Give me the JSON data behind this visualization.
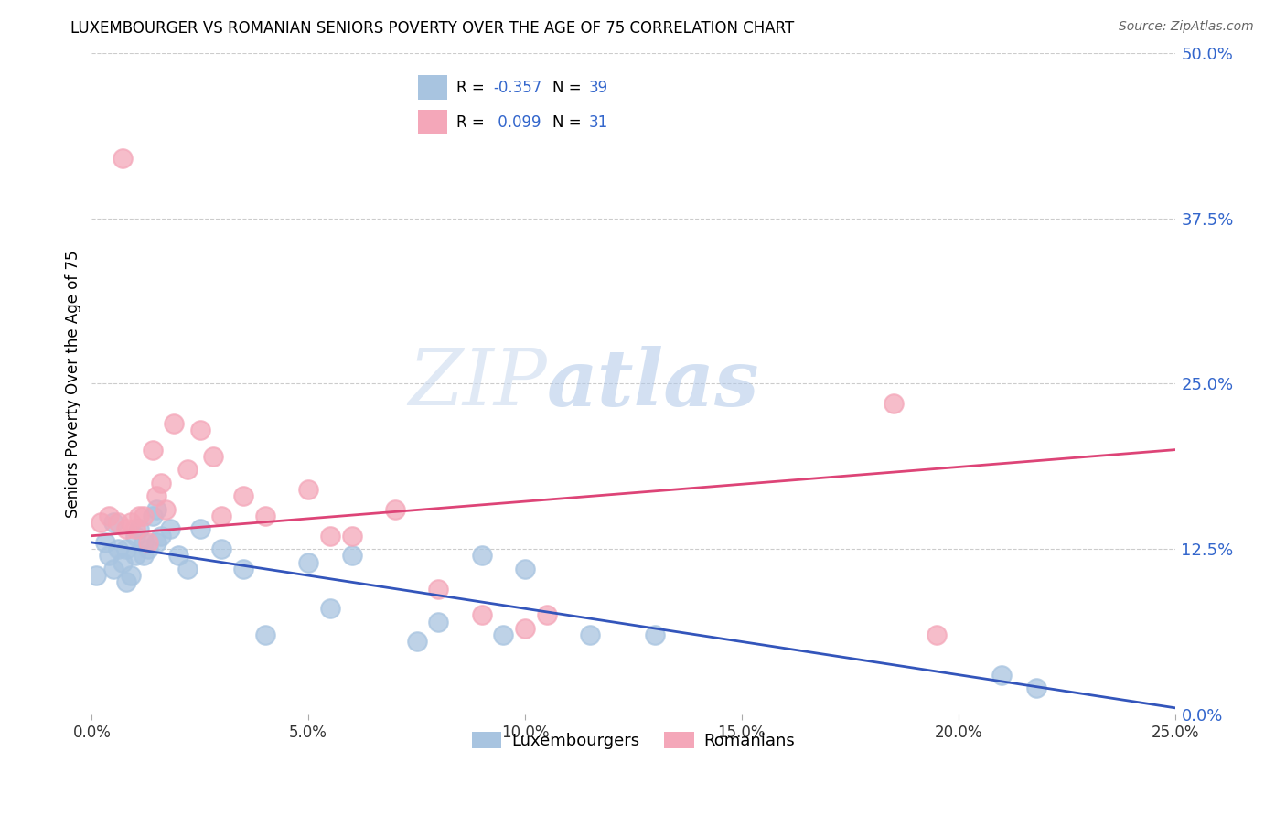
{
  "title": "LUXEMBOURGER VS ROMANIAN SENIORS POVERTY OVER THE AGE OF 75 CORRELATION CHART",
  "source": "Source: ZipAtlas.com",
  "ylabel": "Seniors Poverty Over the Age of 75",
  "xlabel_ticks": [
    "0.0%",
    "5.0%",
    "10.0%",
    "15.0%",
    "20.0%",
    "25.0%"
  ],
  "xlabel_vals": [
    0.0,
    0.05,
    0.1,
    0.15,
    0.2,
    0.25
  ],
  "ylabel_ticks": [
    "0.0%",
    "12.5%",
    "25.0%",
    "37.5%",
    "50.0%"
  ],
  "ylabel_vals": [
    0.0,
    0.125,
    0.25,
    0.375,
    0.5
  ],
  "xlim": [
    0.0,
    0.25
  ],
  "ylim": [
    0.0,
    0.5
  ],
  "lux_R": -0.357,
  "lux_N": 39,
  "rom_R": 0.099,
  "rom_N": 31,
  "lux_color": "#a8c4e0",
  "rom_color": "#f4a7b9",
  "lux_line_color": "#3355bb",
  "rom_line_color": "#dd4477",
  "lux_line_start_y": 0.13,
  "lux_line_end_y": 0.005,
  "rom_line_start_y": 0.135,
  "rom_line_end_y": 0.2,
  "lux_x": [
    0.001,
    0.003,
    0.004,
    0.005,
    0.005,
    0.006,
    0.007,
    0.008,
    0.008,
    0.009,
    0.01,
    0.01,
    0.011,
    0.012,
    0.012,
    0.013,
    0.014,
    0.015,
    0.015,
    0.016,
    0.018,
    0.02,
    0.022,
    0.025,
    0.03,
    0.035,
    0.04,
    0.05,
    0.055,
    0.06,
    0.075,
    0.08,
    0.09,
    0.095,
    0.1,
    0.115,
    0.13,
    0.21,
    0.218
  ],
  "lux_y": [
    0.105,
    0.13,
    0.12,
    0.145,
    0.11,
    0.125,
    0.115,
    0.125,
    0.1,
    0.105,
    0.12,
    0.135,
    0.14,
    0.13,
    0.12,
    0.125,
    0.15,
    0.155,
    0.13,
    0.135,
    0.14,
    0.12,
    0.11,
    0.14,
    0.125,
    0.11,
    0.06,
    0.115,
    0.08,
    0.12,
    0.055,
    0.07,
    0.12,
    0.06,
    0.11,
    0.06,
    0.06,
    0.03,
    0.02
  ],
  "rom_x": [
    0.002,
    0.004,
    0.006,
    0.007,
    0.008,
    0.009,
    0.01,
    0.011,
    0.012,
    0.013,
    0.014,
    0.015,
    0.016,
    0.017,
    0.019,
    0.022,
    0.025,
    0.028,
    0.03,
    0.035,
    0.04,
    0.05,
    0.055,
    0.06,
    0.07,
    0.08,
    0.09,
    0.1,
    0.105,
    0.185,
    0.195
  ],
  "rom_y": [
    0.145,
    0.15,
    0.145,
    0.42,
    0.14,
    0.145,
    0.14,
    0.15,
    0.15,
    0.13,
    0.2,
    0.165,
    0.175,
    0.155,
    0.22,
    0.185,
    0.215,
    0.195,
    0.15,
    0.165,
    0.15,
    0.17,
    0.135,
    0.135,
    0.155,
    0.095,
    0.075,
    0.065,
    0.075,
    0.235,
    0.06
  ]
}
